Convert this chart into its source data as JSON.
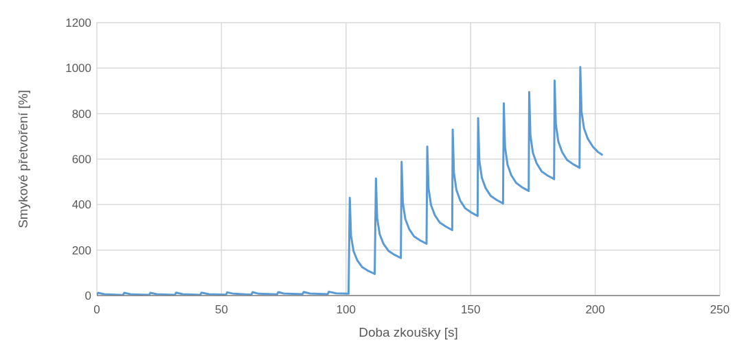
{
  "chart_data": {
    "type": "line",
    "xlabel": "Doba zkoušky [s]",
    "ylabel": "Smykové přetvoření [%]",
    "xlim": [
      0,
      250
    ],
    "xticks": [
      0,
      50,
      100,
      150,
      200,
      250
    ],
    "ylim": [
      0,
      1200
    ],
    "yticks": [
      0,
      200,
      400,
      600,
      800,
      1000,
      1200
    ],
    "grid": true,
    "marker": "none",
    "line_style": "solid",
    "series": [
      {
        "color": "#5b9bd5",
        "x": [
          0,
          0.5,
          3,
          10.5,
          11,
          14,
          21,
          21.5,
          24,
          31.3,
          31.8,
          34.5,
          41.5,
          42,
          45,
          51.8,
          52.3,
          55,
          62,
          62.5,
          65,
          72.3,
          72.8,
          75,
          82.5,
          83,
          85.5,
          92.6,
          93.1,
          96,
          101,
          101.5,
          102,
          103,
          104.5,
          106.5,
          109,
          111.5,
          112,
          112.5,
          113.5,
          115,
          117,
          119.5,
          122,
          122.3,
          122.8,
          123.8,
          125.3,
          127.3,
          129.8,
          132.3,
          132.6,
          133.1,
          134.1,
          135.6,
          137.6,
          140.1,
          142.6,
          142.8,
          143.3,
          144.3,
          145.8,
          147.8,
          150.3,
          152.8,
          153,
          153.5,
          154.5,
          156,
          158,
          160.5,
          163,
          163.3,
          163.8,
          164.8,
          166.3,
          168.3,
          170.8,
          173.3,
          173.5,
          174,
          175,
          176.5,
          178.5,
          181,
          183.5,
          183.7,
          184.2,
          185.2,
          186.7,
          188.7,
          191.2,
          193.7,
          194,
          194.5,
          195.5,
          197,
          199,
          201,
          203
        ],
        "values": [
          3,
          12,
          6,
          2,
          12,
          5,
          3,
          12,
          6,
          3,
          13,
          6,
          3,
          13,
          6,
          4,
          14,
          8,
          4,
          15,
          8,
          5,
          15,
          9,
          6,
          16,
          9,
          6,
          17,
          10,
          8,
          430,
          263,
          196,
          155,
          125,
          108,
          95,
          515,
          340,
          270,
          228,
          197,
          179,
          165,
          588,
          408,
          336,
          293,
          260,
          242,
          228,
          655,
          472,
          398,
          354,
          321,
          303,
          288,
          730,
          540,
          464,
          418,
          384,
          365,
          350,
          780,
          593,
          518,
          473,
          439,
          420,
          405,
          845,
          653,
          576,
          529,
          495,
          475,
          460,
          895,
          704,
          627,
          581,
          546,
          527,
          512,
          945,
          754,
          677,
          631,
          596,
          577,
          562,
          1005,
          810,
          735,
          690,
          655,
          632,
          617
        ]
      }
    ]
  }
}
